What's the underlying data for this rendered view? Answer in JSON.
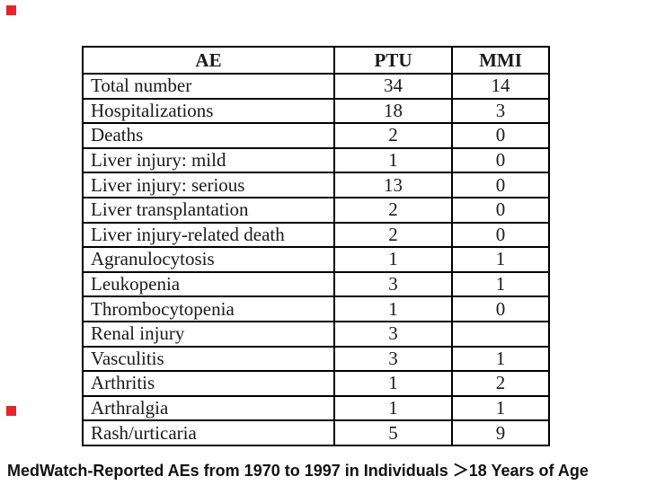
{
  "slide": {
    "caption": "MedWatch-Reported AEs from 1970 to 1997 in Individuals ＞18 Years of Age"
  },
  "colors": {
    "bullet_red": "#e5252b",
    "table_border": "#000000",
    "text": "#1a1a1a",
    "background": "#ffffff"
  },
  "table": {
    "headers": [
      "AE",
      "PTU",
      "MMI"
    ],
    "rows": [
      {
        "ae": "Total number",
        "ptu": "34",
        "mmi": "14"
      },
      {
        "ae": "Hospitalizations",
        "ptu": "18",
        "mmi": "3"
      },
      {
        "ae": "Deaths",
        "ptu": "2",
        "mmi": "0"
      },
      {
        "ae": "Liver injury: mild",
        "ptu": "1",
        "mmi": "0"
      },
      {
        "ae": "Liver injury: serious",
        "ptu": "13",
        "mmi": "0"
      },
      {
        "ae": "Liver transplantation",
        "ptu": "2",
        "mmi": "0"
      },
      {
        "ae": "Liver injury-related death",
        "ptu": "2",
        "mmi": "0"
      },
      {
        "ae": "Agranulocytosis",
        "ptu": "1",
        "mmi": "1"
      },
      {
        "ae": "Leukopenia",
        "ptu": "3",
        "mmi": "1"
      },
      {
        "ae": "Thrombocytopenia",
        "ptu": "1",
        "mmi": "0"
      },
      {
        "ae": "Renal injury",
        "ptu": "3",
        "mmi": ""
      },
      {
        "ae": "Vasculitis",
        "ptu": "3",
        "mmi": "1"
      },
      {
        "ae": "Arthritis",
        "ptu": "1",
        "mmi": "2"
      },
      {
        "ae": "Arthralgia",
        "ptu": "1",
        "mmi": "1"
      },
      {
        "ae": "Rash/urticaria",
        "ptu": "5",
        "mmi": "9"
      }
    ]
  }
}
